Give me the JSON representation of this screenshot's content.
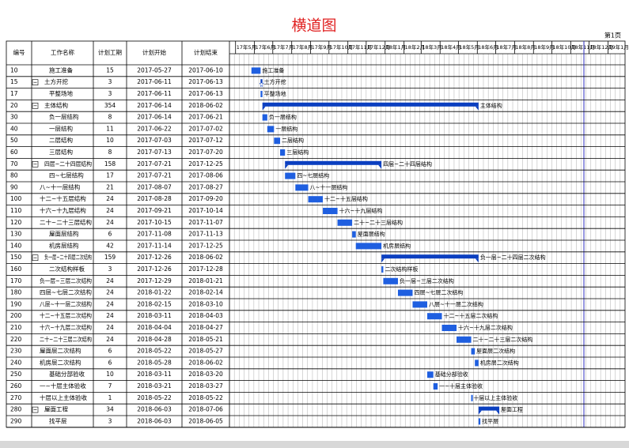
{
  "chart_data": {
    "type": "gantt",
    "title": "横道图",
    "page": "第1页",
    "columns": [
      "编号",
      "工作名称",
      "计划工期",
      "计划开始",
      "计划结束"
    ],
    "timeline": {
      "xlim": [
        "2017-04-21",
        "2019-01-29"
      ],
      "months": [
        {
          "value": "2017-05-01",
          "label": "17年5月"
        },
        {
          "value": "2017-06-01",
          "label": "17年6月"
        },
        {
          "value": "2017-07-01",
          "label": "17年7月"
        },
        {
          "value": "2017-08-01",
          "label": "17年8月"
        },
        {
          "value": "2017-09-01",
          "label": "17年9月"
        },
        {
          "value": "2017-10-01",
          "label": "17年10月"
        },
        {
          "value": "2017-11-01",
          "label": "17年11月"
        },
        {
          "value": "2017-12-01",
          "label": "17年12月"
        },
        {
          "value": "2018-01-01",
          "label": "18年1月"
        },
        {
          "value": "2018-02-01",
          "label": "18年2月"
        },
        {
          "value": "2018-03-01",
          "label": "18年3月"
        },
        {
          "value": "2018-04-01",
          "label": "18年4月"
        },
        {
          "value": "2018-05-01",
          "label": "18年5月"
        },
        {
          "value": "2018-06-01",
          "label": "18年6月"
        },
        {
          "value": "2018-07-01",
          "label": "18年7月"
        },
        {
          "value": "2018-08-01",
          "label": "18年8月"
        },
        {
          "value": "2018-09-01",
          "label": "18年9月"
        },
        {
          "value": "2018-10-01",
          "label": "18年10月"
        },
        {
          "value": "2018-11-01",
          "label": "18年11月"
        },
        {
          "value": "2018-12-01",
          "label": "18年12月"
        },
        {
          "value": "2019-01-01",
          "label": "19年1月"
        }
      ]
    },
    "color": "#1f5fe0",
    "summary_color": "#0b3fc0",
    "tasks": [
      {
        "id": 10,
        "name": "施工准备",
        "duration": 15,
        "start": "2017-05-27",
        "end": "2017-06-10",
        "summary": false
      },
      {
        "id": 15,
        "name": "土方开挖",
        "duration": 3,
        "start": "2017-06-11",
        "end": "2017-06-13",
        "summary": true
      },
      {
        "id": 17,
        "name": "平整场地",
        "duration": 3,
        "start": "2017-06-11",
        "end": "2017-06-13",
        "summary": false
      },
      {
        "id": 20,
        "name": "主体结构",
        "duration": 354,
        "start": "2017-06-14",
        "end": "2018-06-02",
        "summary": true
      },
      {
        "id": 30,
        "name": "负一层结构",
        "duration": 8,
        "start": "2017-06-14",
        "end": "2017-06-21",
        "summary": false
      },
      {
        "id": 40,
        "name": "一层结构",
        "duration": 11,
        "start": "2017-06-22",
        "end": "2017-07-02",
        "summary": false
      },
      {
        "id": 50,
        "name": "二层结构",
        "duration": 10,
        "start": "2017-07-03",
        "end": "2017-07-12",
        "summary": false
      },
      {
        "id": 60,
        "name": "三层结构",
        "duration": 8,
        "start": "2017-07-13",
        "end": "2017-07-20",
        "summary": false
      },
      {
        "id": 70,
        "name": "四层~二十四层结构",
        "duration": 158,
        "start": "2017-07-21",
        "end": "2017-12-25",
        "summary": true
      },
      {
        "id": 80,
        "name": "四~七层结构",
        "duration": 17,
        "start": "2017-07-21",
        "end": "2017-08-06",
        "summary": false
      },
      {
        "id": 90,
        "name": "八~十一层结构",
        "duration": 21,
        "start": "2017-08-07",
        "end": "2017-08-27",
        "summary": false
      },
      {
        "id": 100,
        "name": "十二~十五层结构",
        "duration": 24,
        "start": "2017-08-28",
        "end": "2017-09-20",
        "summary": false
      },
      {
        "id": 110,
        "name": "十六~十九层结构",
        "duration": 24,
        "start": "2017-09-21",
        "end": "2017-10-14",
        "summary": false
      },
      {
        "id": 120,
        "name": "二十~二十三层结构",
        "duration": 24,
        "start": "2017-10-15",
        "end": "2017-11-07",
        "summary": false
      },
      {
        "id": 130,
        "name": "屋面层结构",
        "duration": 6,
        "start": "2017-11-08",
        "end": "2017-11-13",
        "summary": false
      },
      {
        "id": 140,
        "name": "机房层结构",
        "duration": 42,
        "start": "2017-11-14",
        "end": "2017-12-25",
        "summary": false
      },
      {
        "id": 150,
        "name": "负一层~二十四层二次结构",
        "duration": 159,
        "start": "2017-12-26",
        "end": "2018-06-02",
        "summary": true
      },
      {
        "id": 160,
        "name": "二次结构样板",
        "duration": 3,
        "start": "2017-12-26",
        "end": "2017-12-28",
        "summary": false
      },
      {
        "id": 170,
        "name": "负一层~三层二次结构",
        "duration": 24,
        "start": "2017-12-29",
        "end": "2018-01-21",
        "summary": false
      },
      {
        "id": 180,
        "name": "四层~七层二次结构",
        "duration": 24,
        "start": "2018-01-22",
        "end": "2018-02-14",
        "summary": false
      },
      {
        "id": 190,
        "name": "八层~十一层二次结构",
        "duration": 24,
        "start": "2018-02-15",
        "end": "2018-03-10",
        "summary": false
      },
      {
        "id": 200,
        "name": "十二~十五层二次结构",
        "duration": 24,
        "start": "2018-03-11",
        "end": "2018-04-03",
        "summary": false
      },
      {
        "id": 210,
        "name": "十六~十九层二次结构",
        "duration": 24,
        "start": "2018-04-04",
        "end": "2018-04-27",
        "summary": false
      },
      {
        "id": 220,
        "name": "二十~二十三层二次结构",
        "duration": 24,
        "start": "2018-04-28",
        "end": "2018-05-21",
        "summary": false
      },
      {
        "id": 230,
        "name": "屋面层二次结构",
        "duration": 6,
        "start": "2018-05-22",
        "end": "2018-05-27",
        "summary": false
      },
      {
        "id": 240,
        "name": "机房层二次结构",
        "duration": 6,
        "start": "2018-05-28",
        "end": "2018-06-02",
        "summary": false
      },
      {
        "id": 250,
        "name": "基础分部验收",
        "duration": 10,
        "start": "2018-03-11",
        "end": "2018-03-20",
        "summary": false
      },
      {
        "id": 260,
        "name": "一~十层主体验收",
        "duration": 7,
        "start": "2018-03-21",
        "end": "2018-03-27",
        "summary": false
      },
      {
        "id": 270,
        "name": "十层以上主体验收",
        "duration": 1,
        "start": "2018-05-22",
        "end": "2018-05-22",
        "summary": false
      },
      {
        "id": 280,
        "name": "屋面工程",
        "duration": 34,
        "start": "2018-06-03",
        "end": "2018-07-06",
        "summary": true
      },
      {
        "id": 290,
        "name": "找平层",
        "duration": 3,
        "start": "2018-06-03",
        "end": "2018-06-05",
        "summary": false
      }
    ]
  }
}
